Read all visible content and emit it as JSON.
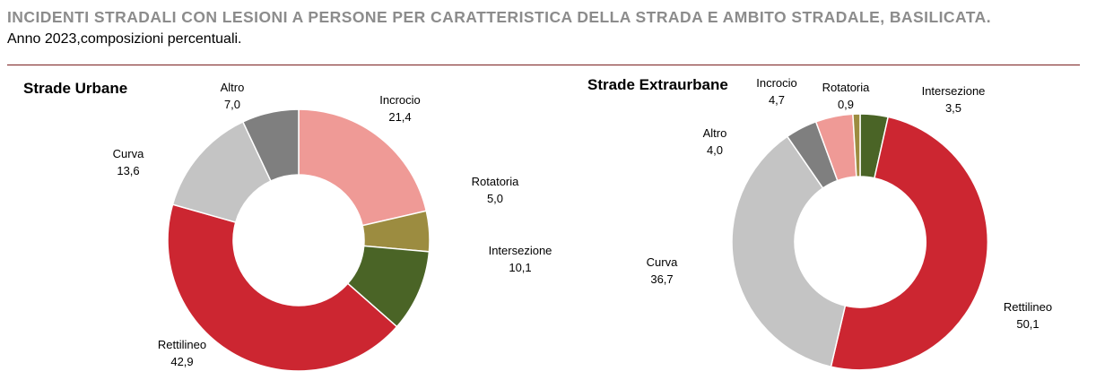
{
  "header": {
    "title": "INCIDENTI STRADALI CON LESIONI A PERSONE PER CARATTERISTICA DELLA STRADA E AMBITO STRADALE, BASILICATA.",
    "subtitle": "Anno 2023,composizioni percentuali."
  },
  "colors": {
    "Incrocio": "#ef9a96",
    "Rotatoria": "#9c8c40",
    "Intersezione": "#4a6426",
    "Rettilineo": "#cc2631",
    "Curva": "#c4c4c4",
    "Altro": "#7f7f7f"
  },
  "chart_data": [
    {
      "type": "pie",
      "title": "Strade Urbane",
      "slices": [
        {
          "label": "Incrocio",
          "value": 21.4,
          "display": "21,4"
        },
        {
          "label": "Rotatoria",
          "value": 5.0,
          "display": "5,0"
        },
        {
          "label": "Intersezione",
          "value": 10.1,
          "display": "10,1"
        },
        {
          "label": "Rettilineo",
          "value": 42.9,
          "display": "42,9"
        },
        {
          "label": "Curva",
          "value": 13.6,
          "display": "13,6"
        },
        {
          "label": "Altro",
          "value": 7.0,
          "display": "7,0"
        }
      ]
    },
    {
      "type": "pie",
      "title": "Strade Extraurbane",
      "slices": [
        {
          "label": "Intersezione",
          "value": 3.5,
          "display": "3,5"
        },
        {
          "label": "Rettilineo",
          "value": 50.1,
          "display": "50,1"
        },
        {
          "label": "Curva",
          "value": 36.7,
          "display": "36,7"
        },
        {
          "label": "Altro",
          "value": 4.0,
          "display": "4,0"
        },
        {
          "label": "Incrocio",
          "value": 4.7,
          "display": "4,7"
        },
        {
          "label": "Rotatoria",
          "value": 0.9,
          "display": "0,9"
        }
      ]
    }
  ]
}
